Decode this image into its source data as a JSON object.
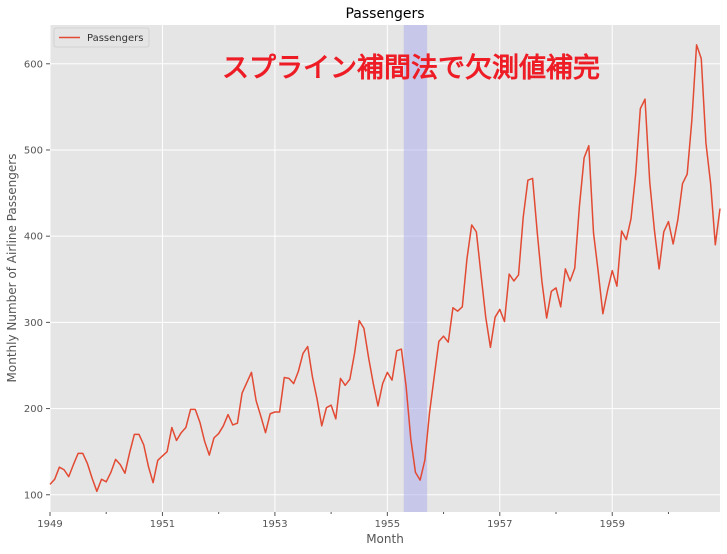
{
  "chart_data": {
    "type": "line",
    "title": "Passengers",
    "xlabel": "Month",
    "ylabel": "Monthly Number of Airline Passengers",
    "annotation": "スプライン補間法で欠測値補完",
    "legend": {
      "placement": "top-left",
      "entries": [
        "Passengers"
      ]
    },
    "grid": true,
    "line_color": "#e24a33",
    "span_color": "#aaaaee",
    "xlim": [
      "1949-01",
      "1960-12"
    ],
    "ylim": [
      80,
      645
    ],
    "x_ticks": [
      "1949",
      "1951",
      "1953",
      "1955",
      "1957",
      "1959"
    ],
    "y_ticks": [
      100,
      200,
      300,
      400,
      500,
      600
    ],
    "highlight_span": [
      "1955-05",
      "1955-09"
    ],
    "series": [
      {
        "name": "Passengers",
        "start": "1949-01",
        "frequency": "monthly",
        "values": [
          112,
          118,
          132,
          129,
          121,
          135,
          148,
          148,
          136,
          119,
          104,
          118,
          115,
          126,
          141,
          135,
          125,
          149,
          170,
          170,
          158,
          133,
          114,
          140,
          145,
          150,
          178,
          163,
          172,
          178,
          199,
          199,
          184,
          162,
          146,
          166,
          171,
          180,
          193,
          181,
          183,
          218,
          230,
          242,
          209,
          191,
          172,
          194,
          196,
          196,
          236,
          235,
          229,
          243,
          264,
          272,
          237,
          211,
          180,
          201,
          204,
          188,
          235,
          227,
          234,
          264,
          302,
          293,
          259,
          229,
          203,
          229,
          242,
          233,
          267,
          269,
          226,
          165,
          126,
          117,
          140,
          195,
          237,
          278,
          284,
          277,
          317,
          313,
          318,
          374,
          413,
          405,
          355,
          306,
          271,
          306,
          315,
          301,
          356,
          348,
          355,
          422,
          465,
          467,
          404,
          347,
          305,
          336,
          340,
          318,
          362,
          348,
          363,
          435,
          491,
          505,
          404,
          359,
          310,
          337,
          360,
          342,
          406,
          396,
          420,
          472,
          548,
          559,
          463,
          407,
          362,
          405,
          417,
          391,
          419,
          461,
          472,
          535,
          622,
          606,
          508,
          461,
          390,
          432
        ]
      }
    ]
  }
}
